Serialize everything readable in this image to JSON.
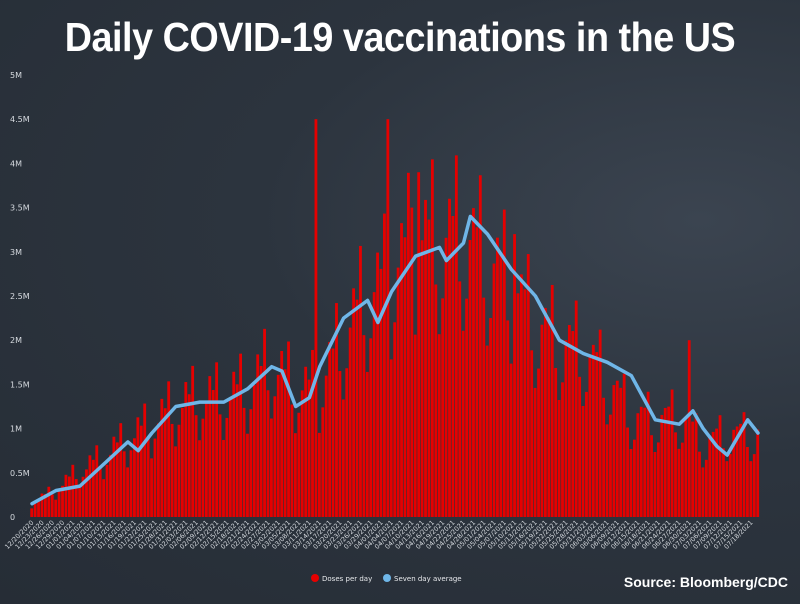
{
  "title": "Daily COVID-19 vaccinations in the US",
  "source": "Source: Bloomberg/CDC",
  "colors": {
    "bars": "#e60000",
    "average": "#6fb6e8",
    "background": "#2b333d",
    "text": "#ffffff"
  },
  "chart_data": {
    "type": "bar",
    "title": "Daily COVID-19 vaccinations in the US",
    "ylim": [
      0,
      5000000
    ],
    "y_ticks": [
      {
        "value": 0,
        "label": "0"
      },
      {
        "value": 500000,
        "label": "0.5M"
      },
      {
        "value": 1000000,
        "label": "1M"
      },
      {
        "value": 1500000,
        "label": "1.5M"
      },
      {
        "value": 2000000,
        "label": "2M"
      },
      {
        "value": 2500000,
        "label": "2.5M"
      },
      {
        "value": 3000000,
        "label": "3M"
      },
      {
        "value": 3500000,
        "label": "3.5M"
      },
      {
        "value": 4000000,
        "label": "4M"
      },
      {
        "value": 4500000,
        "label": "4.5M"
      },
      {
        "value": 5000000,
        "label": "5M"
      }
    ],
    "x_range": [
      "2020-12-20",
      "2021-07-20"
    ],
    "x_tick_step_days": 3,
    "legend": {
      "placement": "bottom-center",
      "entries": [
        "Doses per day",
        "Seven day average"
      ]
    },
    "series": [
      {
        "name": "Doses per day",
        "kind": "bar",
        "anchors": [
          [
            "2020-12-20",
            150000
          ],
          [
            "2020-12-27",
            300000
          ],
          [
            "2021-01-03",
            500000
          ],
          [
            "2021-01-10",
            650000
          ],
          [
            "2021-01-17",
            850000
          ],
          [
            "2021-01-24",
            1000000
          ],
          [
            "2021-01-31",
            1200000
          ],
          [
            "2021-02-07",
            1300000
          ],
          [
            "2021-02-14",
            1300000
          ],
          [
            "2021-02-21",
            1400000
          ],
          [
            "2021-02-28",
            1650000
          ],
          [
            "2021-03-07",
            1400000
          ],
          [
            "2021-03-14",
            1400000
          ],
          [
            "2021-03-21",
            1950000
          ],
          [
            "2021-03-28",
            2400000
          ],
          [
            "2021-04-04",
            2600000
          ],
          [
            "2021-04-11",
            3000000
          ],
          [
            "2021-04-18",
            3000000
          ],
          [
            "2021-04-25",
            3050000
          ],
          [
            "2021-05-02",
            2800000
          ],
          [
            "2021-05-09",
            2500000
          ],
          [
            "2021-05-16",
            2100000
          ],
          [
            "2021-05-23",
            1900000
          ],
          [
            "2021-05-30",
            1800000
          ],
          [
            "2021-06-06",
            1500000
          ],
          [
            "2021-06-13",
            1100000
          ],
          [
            "2021-06-20",
            1050000
          ],
          [
            "2021-06-27",
            1100000
          ],
          [
            "2021-07-04",
            800000
          ],
          [
            "2021-07-11",
            900000
          ],
          [
            "2021-07-20",
            900000
          ]
        ],
        "spikes": [
          [
            "2021-03-13",
            4500000
          ],
          [
            "2021-04-03",
            4500000
          ],
          [
            "2021-04-10",
            3500000
          ],
          [
            "2021-04-12",
            3900000
          ],
          [
            "2021-05-10",
            3200000
          ],
          [
            "2021-06-30",
            2000000
          ]
        ]
      },
      {
        "name": "Seven day average",
        "kind": "line",
        "points": [
          [
            "2020-12-20",
            150000
          ],
          [
            "2020-12-27",
            300000
          ],
          [
            "2021-01-03",
            350000
          ],
          [
            "2021-01-10",
            600000
          ],
          [
            "2021-01-17",
            850000
          ],
          [
            "2021-01-20",
            750000
          ],
          [
            "2021-01-24",
            950000
          ],
          [
            "2021-01-31",
            1250000
          ],
          [
            "2021-02-07",
            1300000
          ],
          [
            "2021-02-14",
            1300000
          ],
          [
            "2021-02-21",
            1450000
          ],
          [
            "2021-02-28",
            1700000
          ],
          [
            "2021-03-03",
            1650000
          ],
          [
            "2021-03-07",
            1250000
          ],
          [
            "2021-03-11",
            1350000
          ],
          [
            "2021-03-14",
            1700000
          ],
          [
            "2021-03-21",
            2250000
          ],
          [
            "2021-03-28",
            2450000
          ],
          [
            "2021-03-31",
            2200000
          ],
          [
            "2021-04-04",
            2550000
          ],
          [
            "2021-04-11",
            2950000
          ],
          [
            "2021-04-18",
            3050000
          ],
          [
            "2021-04-20",
            2900000
          ],
          [
            "2021-04-25",
            3100000
          ],
          [
            "2021-04-27",
            3400000
          ],
          [
            "2021-05-02",
            3200000
          ],
          [
            "2021-05-09",
            2800000
          ],
          [
            "2021-05-16",
            2500000
          ],
          [
            "2021-05-23",
            2000000
          ],
          [
            "2021-05-30",
            1850000
          ],
          [
            "2021-06-06",
            1750000
          ],
          [
            "2021-06-13",
            1600000
          ],
          [
            "2021-06-20",
            1100000
          ],
          [
            "2021-06-27",
            1050000
          ],
          [
            "2021-07-01",
            1200000
          ],
          [
            "2021-07-04",
            1000000
          ],
          [
            "2021-07-08",
            800000
          ],
          [
            "2021-07-11",
            700000
          ],
          [
            "2021-07-17",
            1100000
          ],
          [
            "2021-07-20",
            950000
          ]
        ]
      }
    ]
  }
}
